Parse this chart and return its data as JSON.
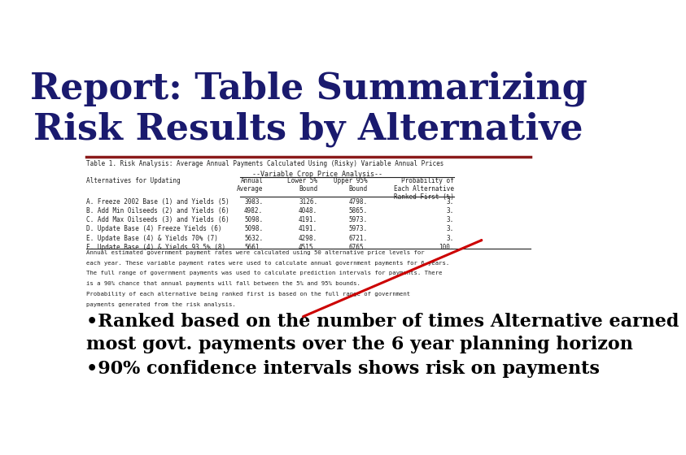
{
  "title_line1": "Report: Table Summarizing",
  "title_line2": "Risk Results by Alternative",
  "title_color": "#1a1a6e",
  "title_fontsize": 32,
  "bg_color": "#ffffff",
  "divider_color": "#8b1a1a",
  "table_title": "Table 1. Risk Analysis: Average Annual Payments Calculated Using (Risky) Variable Annual Prices",
  "col_header_group": "--Variable Crop Price Analysis--",
  "row_data": [
    [
      "A. Freeze 2002 Base (1) and Yields (5)",
      "3983.",
      "3126.",
      "4798.",
      "3."
    ],
    [
      "B. Add Min Oilseeds (2) and Yields (6)",
      "4982.",
      "4048.",
      "5865.",
      "3."
    ],
    [
      "C. Add Max Oilseeds (3) and Yields (6)",
      "5098.",
      "4191.",
      "5973.",
      "3."
    ],
    [
      "D. Update Base (4) Freeze Yields (6)",
      "5098.",
      "4191.",
      "5973.",
      "3."
    ],
    [
      "E. Update Base (4) & Yields 70% (7)",
      "5632.",
      "4298.",
      "6721.",
      "3."
    ],
    [
      "F. Update Base (4) & Yields 93.5% (8)",
      "5661.",
      "4515.",
      "6765.",
      "100."
    ]
  ],
  "footnote_lines": [
    "Annual estimated government payment rates were calculated using 50 alternative price levels for",
    "each year. These variable payment rates were used to calculate annual government payments for 6 years.",
    "The full range of government payments was used to calculate prediction intervals for payments. There",
    "is a 90% chance that annual payments will fall between the 5% and 95% bounds.",
    "Probability of each alternative being ranked first is based on the full range of government",
    "payments generated from the risk analysis."
  ],
  "bullet1": "•Ranked based on the number of times Alternative earned\nmost govt. payments over the 6 year planning horizon",
  "bullet2": "•90% confidence intervals shows risk on payments",
  "bullet_fontsize": 16,
  "bullet_color": "#000000",
  "arrow_color": "#cc0000"
}
